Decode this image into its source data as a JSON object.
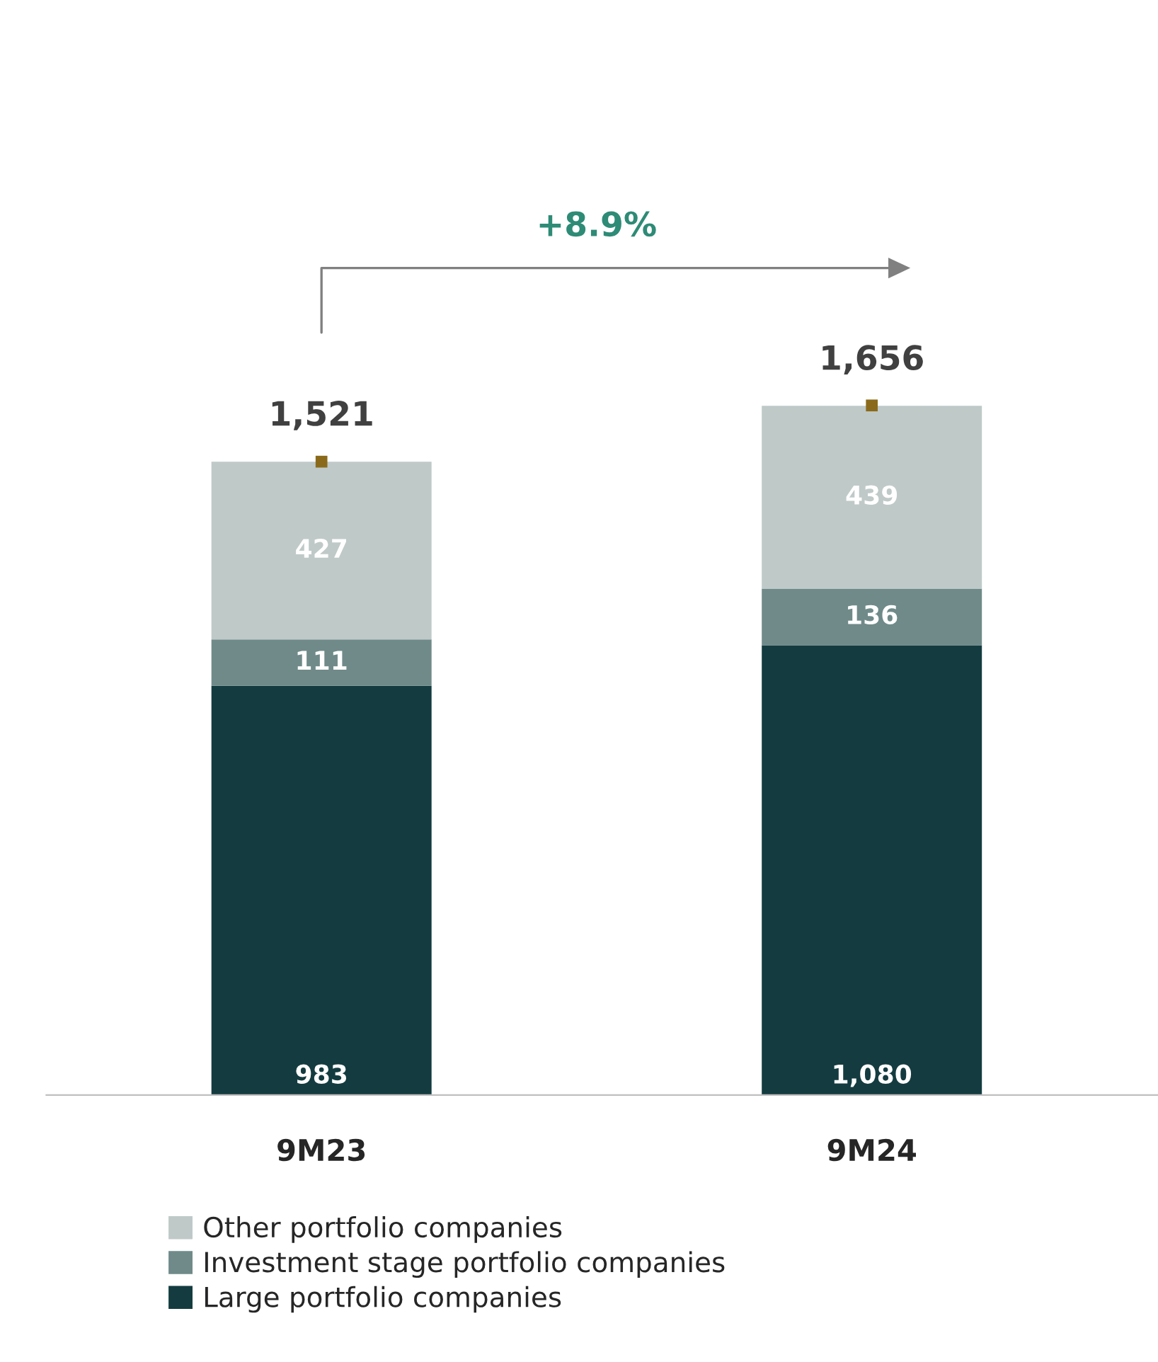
{
  "chart_data": {
    "type": "bar",
    "stacked": true,
    "categories": [
      "9M23",
      "9M24"
    ],
    "series": [
      {
        "name": "Large portfolio companies",
        "color": "#143c40",
        "values": [
          983,
          1080
        ],
        "value_labels": [
          "983",
          "1,080"
        ]
      },
      {
        "name": "Investment stage portfolio companies",
        "color": "#6f8a89",
        "values": [
          111,
          136
        ],
        "value_labels": [
          "111",
          "136"
        ]
      },
      {
        "name": "Other portfolio companies",
        "color": "#bfc9c8",
        "values": [
          427,
          439
        ],
        "value_labels": [
          "427",
          "439"
        ]
      },
      {
        "type": "scatter",
        "color": "#8a6a1a",
        "x": [
          "9M23",
          "9M24"
        ],
        "values": [
          1521,
          1656
        ]
      }
    ],
    "totals": [
      "1,521",
      "1,656"
    ],
    "annotations": [
      "+8.9%"
    ],
    "tick_labels": "x",
    "grid": false,
    "legend": "bottom"
  }
}
